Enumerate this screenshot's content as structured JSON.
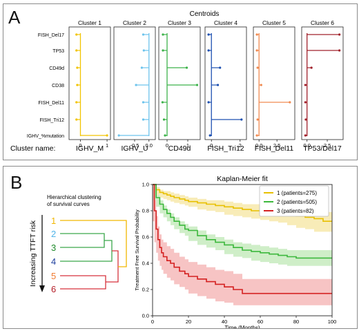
{
  "panel_a": {
    "letter": "A",
    "title": "Centroids",
    "cluster_name_label": "Cluster name:",
    "features": [
      "FISH_Del17",
      "TP53",
      "CD49d",
      "CD38",
      "FISH_Del11",
      "FISH_Tri12",
      "IGHV_%mutation"
    ]
  },
  "panel_b": {
    "letter": "B",
    "dendro_title_1": "Hierarchical clustering",
    "dendro_title_2": "of survival curves",
    "risk_label": "Increasing TTFT risk",
    "dendro_order": [
      {
        "label": "1",
        "color": "#f2b600"
      },
      {
        "label": "2",
        "color": "#4fb3e8"
      },
      {
        "label": "3",
        "color": "#1e8a2a"
      },
      {
        "label": "4",
        "color": "#1f3f9e"
      },
      {
        "label": "5",
        "color": "#f07a30"
      },
      {
        "label": "6",
        "color": "#b41e28"
      }
    ],
    "dendro_colors": {
      "green": "#3aa64a",
      "yellow": "#f2b600",
      "red": "#d6323c"
    }
  },
  "chart_data": [
    {
      "type": "bar",
      "orientation": "horizontal",
      "name": "Centroids",
      "categories": [
        "FISH_Del17",
        "TP53",
        "CD49d",
        "CD38",
        "FISH_Del11",
        "FISH_Tri12",
        "IGHV_%mutation"
      ],
      "panels": [
        {
          "title": "Cluster 1",
          "cluster_name": "IGHV_M",
          "color": "#f2c400",
          "xlim": [
            -0.35,
            1.05
          ],
          "ticks": [
            0,
            1
          ],
          "tick_labels": [
            "0",
            "1"
          ],
          "values": [
            -0.15,
            -0.15,
            -0.12,
            -0.12,
            -0.15,
            -0.15,
            1.0
          ]
        },
        {
          "title": "Cluster 2",
          "cluster_name": "IGHV_U",
          "color": "#6cc3ec",
          "xlim": [
            -1.15,
            0.15
          ],
          "ticks": [
            -0.5,
            0
          ],
          "tick_labels": [
            "-0.5",
            "0.0"
          ],
          "values": [
            -0.2,
            -0.18,
            -0.25,
            -0.45,
            -0.2,
            -0.2,
            -1.05
          ]
        },
        {
          "title": "Cluster 3",
          "cluster_name": "CD49d",
          "color": "#3cb24a",
          "xlim": [
            -0.3,
            1.5
          ],
          "ticks": [
            0,
            1
          ],
          "tick_labels": [
            "0",
            "1"
          ],
          "values": [
            -0.2,
            -0.2,
            0.95,
            1.45,
            -0.22,
            -0.15,
            -0.1
          ]
        },
        {
          "title": "Cluster 4",
          "cluster_name": "FISH_Tri12",
          "color": "#1c4fb0",
          "xlim": [
            -0.3,
            2.3
          ],
          "ticks": [
            0,
            2
          ],
          "tick_labels": [
            "0",
            "2"
          ],
          "values": [
            -0.2,
            -0.2,
            0.6,
            0.45,
            -0.2,
            2.1,
            -0.1
          ]
        },
        {
          "title": "Cluster 5",
          "cluster_name": "FISH_Del11",
          "color": "#f08a50",
          "xlim": [
            -0.5,
            4.7
          ],
          "ticks": [
            0,
            2.5
          ],
          "tick_labels": [
            "0.0",
            "2.5"
          ],
          "values": [
            -0.3,
            -0.3,
            -0.2,
            0.3,
            4.3,
            -0.2,
            -0.3
          ]
        },
        {
          "title": "Cluster 6",
          "cluster_name": "TP53/Del17",
          "color": "#a0202a",
          "xlim": [
            -0.4,
            4.2
          ],
          "ticks": [
            0,
            2.5
          ],
          "tick_labels": [
            "0.0",
            "2.5"
          ],
          "values": [
            4.0,
            4.0,
            0.55,
            -0.2,
            -0.2,
            -0.15,
            -0.2
          ]
        }
      ]
    },
    {
      "type": "line",
      "title": "Kaplan-Meier fit",
      "xlabel": "Time (Months)",
      "ylabel": "Treatment Free Survival Probability",
      "xlim": [
        0,
        100
      ],
      "ylim": [
        0,
        1.0
      ],
      "xticks": [
        0,
        20,
        40,
        60,
        80,
        100
      ],
      "yticks": [
        0.0,
        0.2,
        0.4,
        0.6,
        0.8,
        1.0
      ],
      "ytick_labels": [
        "0.0",
        "0.2",
        "0.4",
        "0.6",
        "0.8",
        "1.0"
      ],
      "legend_position": "top-right",
      "series": [
        {
          "name": "1 (patients=275)",
          "color": "#e8c000",
          "band_color": "#f6e6a0",
          "x": [
            0,
            2,
            4,
            6,
            8,
            10,
            12,
            15,
            18,
            20,
            25,
            30,
            35,
            40,
            45,
            50,
            55,
            60,
            65,
            70,
            75,
            80,
            85,
            90,
            95,
            100
          ],
          "y": [
            1.0,
            0.96,
            0.94,
            0.93,
            0.92,
            0.91,
            0.9,
            0.89,
            0.88,
            0.87,
            0.86,
            0.85,
            0.84,
            0.83,
            0.82,
            0.81,
            0.8,
            0.8,
            0.79,
            0.78,
            0.77,
            0.76,
            0.75,
            0.74,
            0.72,
            0.72
          ],
          "lo": [
            1.0,
            0.94,
            0.92,
            0.9,
            0.89,
            0.88,
            0.87,
            0.86,
            0.85,
            0.84,
            0.83,
            0.81,
            0.8,
            0.79,
            0.77,
            0.76,
            0.75,
            0.74,
            0.73,
            0.72,
            0.71,
            0.69,
            0.67,
            0.66,
            0.64,
            0.64
          ],
          "hi": [
            1.0,
            0.98,
            0.96,
            0.95,
            0.95,
            0.94,
            0.93,
            0.92,
            0.91,
            0.9,
            0.89,
            0.88,
            0.88,
            0.87,
            0.86,
            0.85,
            0.85,
            0.85,
            0.84,
            0.83,
            0.82,
            0.82,
            0.81,
            0.81,
            0.79,
            0.79
          ]
        },
        {
          "name": "2 (patients=505)",
          "color": "#3cb83c",
          "band_color": "#bfe8b6",
          "x": [
            0,
            2,
            4,
            6,
            8,
            10,
            12,
            15,
            18,
            20,
            25,
            30,
            35,
            40,
            45,
            50,
            55,
            60,
            65,
            70,
            75,
            80,
            85,
            90,
            95,
            100
          ],
          "y": [
            1.0,
            0.9,
            0.85,
            0.81,
            0.78,
            0.75,
            0.72,
            0.69,
            0.66,
            0.65,
            0.61,
            0.58,
            0.56,
            0.54,
            0.52,
            0.5,
            0.49,
            0.48,
            0.47,
            0.46,
            0.45,
            0.44,
            0.44,
            0.44,
            0.44,
            0.44
          ],
          "lo": [
            1.0,
            0.88,
            0.83,
            0.78,
            0.75,
            0.72,
            0.69,
            0.66,
            0.63,
            0.61,
            0.57,
            0.54,
            0.52,
            0.5,
            0.47,
            0.45,
            0.44,
            0.42,
            0.41,
            0.4,
            0.39,
            0.38,
            0.38,
            0.38,
            0.38,
            0.38
          ],
          "hi": [
            1.0,
            0.92,
            0.88,
            0.84,
            0.81,
            0.78,
            0.75,
            0.72,
            0.7,
            0.68,
            0.65,
            0.62,
            0.6,
            0.58,
            0.56,
            0.55,
            0.54,
            0.53,
            0.52,
            0.51,
            0.5,
            0.5,
            0.5,
            0.5,
            0.5,
            0.5
          ]
        },
        {
          "name": "3 (patients=82)",
          "color": "#d42020",
          "band_color": "#f4b0b0",
          "x": [
            0,
            1,
            2,
            3,
            4,
            5,
            6,
            8,
            10,
            12,
            15,
            18,
            20,
            25,
            30,
            35,
            40,
            45,
            50,
            55,
            60,
            70,
            80,
            90,
            100
          ],
          "y": [
            1.0,
            0.8,
            0.66,
            0.58,
            0.52,
            0.48,
            0.45,
            0.42,
            0.4,
            0.37,
            0.34,
            0.32,
            0.3,
            0.28,
            0.26,
            0.24,
            0.22,
            0.2,
            0.17,
            0.17,
            0.17,
            0.17,
            0.17,
            0.17,
            0.17
          ],
          "lo": [
            1.0,
            0.72,
            0.56,
            0.48,
            0.42,
            0.38,
            0.35,
            0.32,
            0.29,
            0.27,
            0.24,
            0.22,
            0.2,
            0.17,
            0.15,
            0.13,
            0.11,
            0.1,
            0.08,
            0.08,
            0.08,
            0.08,
            0.08,
            0.08,
            0.08
          ],
          "hi": [
            1.0,
            0.88,
            0.76,
            0.68,
            0.62,
            0.58,
            0.56,
            0.53,
            0.51,
            0.48,
            0.45,
            0.43,
            0.41,
            0.39,
            0.37,
            0.35,
            0.34,
            0.32,
            0.28,
            0.28,
            0.28,
            0.28,
            0.28,
            0.28,
            0.28
          ]
        }
      ]
    }
  ]
}
